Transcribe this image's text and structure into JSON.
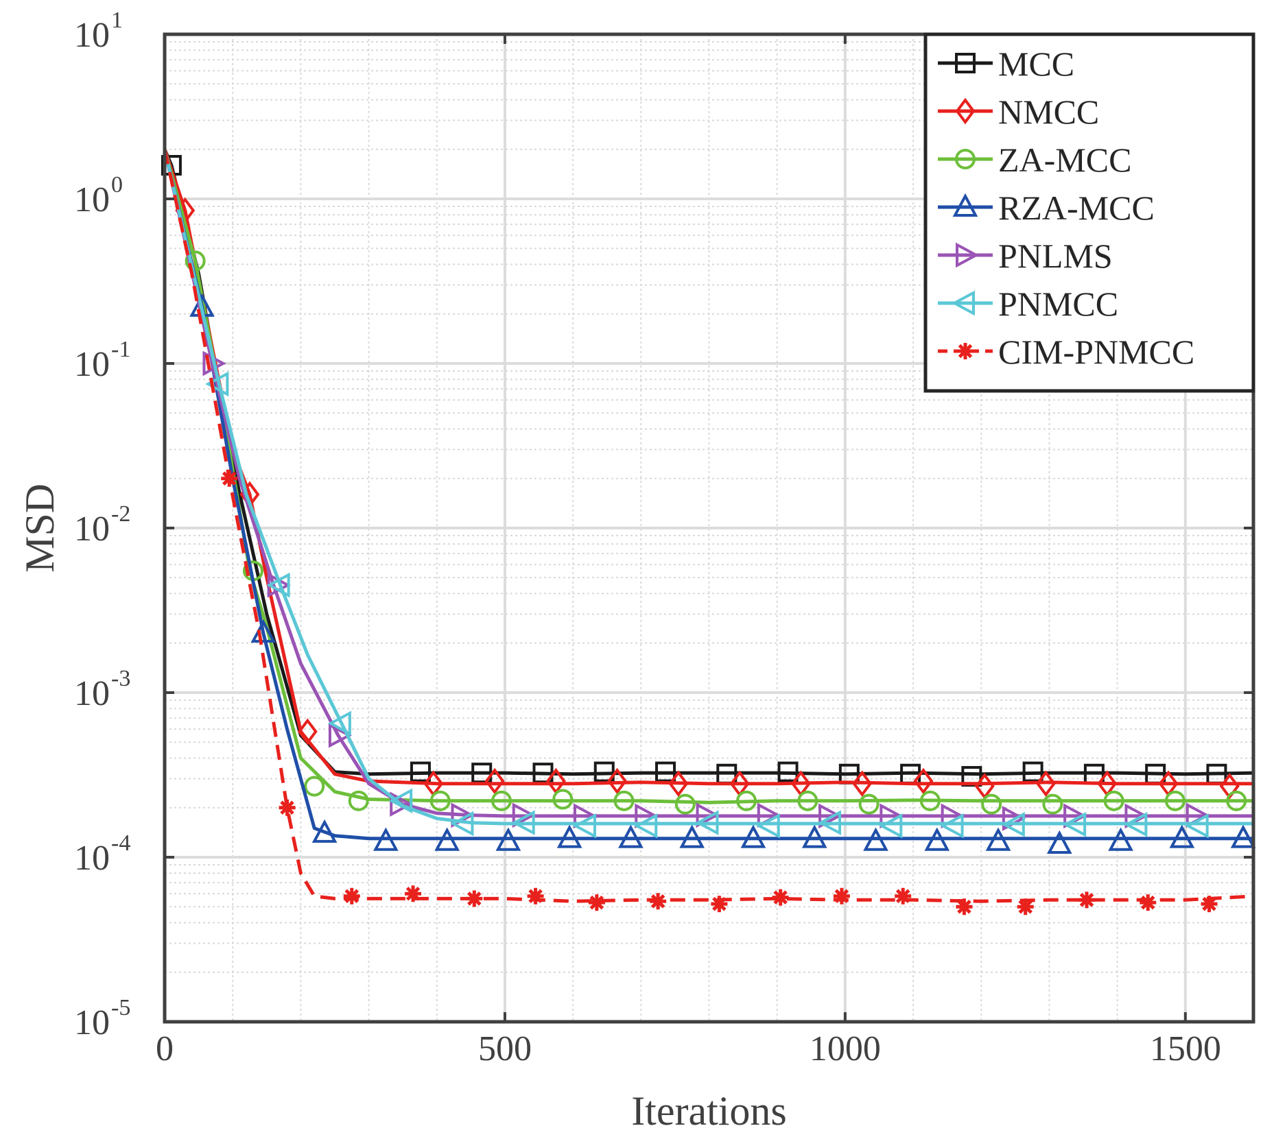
{
  "chart_data": {
    "type": "line",
    "title": "",
    "xlabel": "Iterations",
    "ylabel": "MSD",
    "xlim": [
      0,
      1600
    ],
    "ylim": [
      1e-05,
      10
    ],
    "yscale": "log",
    "xticks": [
      "0",
      "500",
      "1000",
      "1500"
    ],
    "yticks": [
      {
        "base": "10",
        "exp": "-5"
      },
      {
        "base": "10",
        "exp": "-4"
      },
      {
        "base": "10",
        "exp": "-3"
      },
      {
        "base": "10",
        "exp": "-2"
      },
      {
        "base": "10",
        "exp": "-1"
      },
      {
        "base": "10",
        "exp": "0"
      },
      {
        "base": "10",
        "exp": "1"
      }
    ],
    "grid": true,
    "minor_grid": true,
    "legend_position": "top-right",
    "series": [
      {
        "name": "MCC",
        "color": "#1a1a1a",
        "marker": "square",
        "dash": "solid",
        "x": [
          0,
          10,
          50,
          100,
          150,
          200,
          250,
          300,
          400,
          500,
          600,
          700,
          800,
          900,
          1000,
          1100,
          1200,
          1300,
          1400,
          1500,
          1600
        ],
        "y": [
          2.0,
          1.6,
          0.35,
          0.025,
          0.003,
          0.00055,
          0.00033,
          0.00032,
          0.000325,
          0.000325,
          0.00032,
          0.000325,
          0.000325,
          0.000325,
          0.00032,
          0.000325,
          0.00032,
          0.000325,
          0.000325,
          0.00032,
          0.000325
        ],
        "markers_x": [
          10,
          376,
          466,
          556,
          646,
          736,
          826,
          916,
          1006,
          1096,
          1186,
          1276,
          1366,
          1456,
          1546
        ],
        "markers_y": [
          1.6,
          0.00033,
          0.000325,
          0.000325,
          0.00033,
          0.00033,
          0.00032,
          0.00033,
          0.00032,
          0.00032,
          0.00031,
          0.00033,
          0.00032,
          0.00032,
          0.00032
        ]
      },
      {
        "name": "NMCC",
        "color": "#e8211d",
        "marker": "diamond",
        "dash": "solid",
        "x": [
          0,
          30,
          60,
          100,
          125,
          150,
          200,
          250,
          300,
          400,
          500,
          600,
          700,
          800,
          900,
          1000,
          1100,
          1200,
          1300,
          1400,
          1500,
          1600
        ],
        "y": [
          2.0,
          0.85,
          0.2,
          0.03,
          0.016,
          0.005,
          0.00058,
          0.00032,
          0.00029,
          0.00028,
          0.00028,
          0.00028,
          0.000285,
          0.00028,
          0.00028,
          0.000285,
          0.00028,
          0.00028,
          0.000285,
          0.00028,
          0.00028,
          0.00028
        ],
        "markers_x": [
          30,
          125,
          210,
          395,
          485,
          575,
          665,
          755,
          845,
          935,
          1025,
          1115,
          1205,
          1295,
          1385,
          1475,
          1565
        ],
        "markers_y": [
          0.85,
          0.016,
          0.00058,
          0.00028,
          0.00029,
          0.00029,
          0.00029,
          0.00028,
          0.00028,
          0.00028,
          0.00028,
          0.00029,
          0.00027,
          0.00028,
          0.00028,
          0.00028,
          0.00027
        ]
      },
      {
        "name": "ZA-MCC",
        "color": "#6cbf3a",
        "marker": "circle",
        "dash": "solid",
        "x": [
          0,
          45,
          80,
          125,
          150,
          200,
          250,
          300,
          400,
          500,
          600,
          700,
          800,
          900,
          1000,
          1100,
          1200,
          1300,
          1400,
          1500,
          1600
        ],
        "y": [
          2.0,
          0.42,
          0.07,
          0.0055,
          0.0025,
          0.0004,
          0.00025,
          0.000225,
          0.00022,
          0.00022,
          0.00022,
          0.00022,
          0.000215,
          0.00022,
          0.00022,
          0.000222,
          0.00022,
          0.00022,
          0.00022,
          0.00022,
          0.00022
        ],
        "markers_x": [
          45,
          130,
          220,
          285,
          405,
          495,
          585,
          675,
          765,
          855,
          945,
          1035,
          1125,
          1215,
          1305,
          1395,
          1485,
          1575
        ],
        "markers_y": [
          0.42,
          0.0055,
          0.00027,
          0.00022,
          0.00022,
          0.00022,
          0.000225,
          0.00022,
          0.00021,
          0.00022,
          0.00022,
          0.00021,
          0.00022,
          0.00021,
          0.00021,
          0.00022,
          0.00022,
          0.00022
        ]
      },
      {
        "name": "RZA-MCC",
        "color": "#1f4fa8",
        "marker": "triangle-up",
        "dash": "solid",
        "x": [
          0,
          55,
          100,
          145,
          180,
          220,
          250,
          300,
          400,
          500,
          600,
          700,
          800,
          900,
          1000,
          1100,
          1200,
          1300,
          1400,
          1500,
          1600
        ],
        "y": [
          2.0,
          0.22,
          0.02,
          0.0023,
          0.0006,
          0.00015,
          0.000135,
          0.00013,
          0.00013,
          0.00013,
          0.00013,
          0.00013,
          0.00013,
          0.00013,
          0.00013,
          0.00013,
          0.00013,
          0.00013,
          0.00013,
          0.00013,
          0.00013
        ],
        "markers_x": [
          55,
          145,
          235,
          325,
          415,
          505,
          595,
          685,
          775,
          865,
          955,
          1045,
          1135,
          1225,
          1315,
          1405,
          1495,
          1585
        ],
        "markers_y": [
          0.22,
          0.0023,
          0.00014,
          0.000125,
          0.000125,
          0.000125,
          0.00013,
          0.00013,
          0.00013,
          0.00013,
          0.00013,
          0.000125,
          0.000125,
          0.000125,
          0.00012,
          0.000125,
          0.00013,
          0.00013
        ]
      },
      {
        "name": "PNLMS",
        "color": "#9a54b5",
        "marker": "triangle-right",
        "dash": "solid",
        "x": [
          0,
          70,
          110,
          160,
          200,
          255,
          300,
          350,
          400,
          450,
          500,
          600,
          700,
          800,
          900,
          1000,
          1100,
          1200,
          1300,
          1400,
          1500,
          1600
        ],
        "y": [
          2.0,
          0.1,
          0.02,
          0.0045,
          0.0015,
          0.00055,
          0.00028,
          0.00021,
          0.000185,
          0.00018,
          0.000178,
          0.000178,
          0.000178,
          0.000178,
          0.000178,
          0.000178,
          0.000178,
          0.000178,
          0.000178,
          0.000178,
          0.000178,
          0.000178
        ],
        "markers_x": [
          70,
          165,
          255,
          345,
          435,
          525,
          615,
          705,
          795,
          885,
          975,
          1065,
          1155,
          1245,
          1335,
          1425,
          1515
        ],
        "markers_y": [
          0.1,
          0.0045,
          0.00055,
          0.00021,
          0.00018,
          0.00018,
          0.000178,
          0.000178,
          0.00018,
          0.00018,
          0.000178,
          0.000178,
          0.000178,
          0.000172,
          0.000178,
          0.000178,
          0.00018
        ]
      },
      {
        "name": "PNMCC",
        "color": "#5bc7d6",
        "marker": "triangle-left",
        "dash": "solid",
        "x": [
          0,
          80,
          120,
          170,
          210,
          260,
          300,
          350,
          400,
          450,
          500,
          600,
          700,
          800,
          900,
          1000,
          1100,
          1200,
          1300,
          1400,
          1500,
          1600
        ],
        "y": [
          2.0,
          0.075,
          0.016,
          0.0045,
          0.0017,
          0.00065,
          0.0003,
          0.000205,
          0.000172,
          0.000162,
          0.00016,
          0.00016,
          0.00016,
          0.00016,
          0.00016,
          0.00016,
          0.00016,
          0.00016,
          0.00016,
          0.00016,
          0.00016,
          0.00016
        ],
        "markers_x": [
          80,
          170,
          260,
          350,
          440,
          530,
          620,
          710,
          800,
          890,
          980,
          1070,
          1160,
          1250,
          1340,
          1430,
          1520
        ],
        "markers_y": [
          0.075,
          0.0045,
          0.00065,
          0.00022,
          0.00016,
          0.000162,
          0.000155,
          0.000155,
          0.000162,
          0.000155,
          0.000162,
          0.000155,
          0.000155,
          0.000158,
          0.000158,
          0.000158,
          0.000155
        ]
      },
      {
        "name": "CIM-PNMCC",
        "color": "#e8211d",
        "marker": "asterisk",
        "dash": "dashed",
        "x": [
          0,
          40,
          95,
          140,
          180,
          200,
          220,
          250,
          300,
          400,
          500,
          600,
          700,
          800,
          900,
          1000,
          1100,
          1200,
          1300,
          1400,
          1500,
          1600
        ],
        "y": [
          2.0,
          0.35,
          0.02,
          0.0022,
          0.0002,
          8e-05,
          5.8e-05,
          5.6e-05,
          5.6e-05,
          5.6e-05,
          5.6e-05,
          5.4e-05,
          5.5e-05,
          5.5e-05,
          5.6e-05,
          5.5e-05,
          5.5e-05,
          5.4e-05,
          5.5e-05,
          5.5e-05,
          5.5e-05,
          5.8e-05
        ],
        "markers_x": [
          95,
          180,
          275,
          365,
          455,
          545,
          635,
          725,
          815,
          905,
          995,
          1085,
          1175,
          1265,
          1355,
          1445,
          1535
        ],
        "markers_y": [
          0.02,
          0.0002,
          5.8e-05,
          6e-05,
          5.6e-05,
          5.8e-05,
          5.3e-05,
          5.4e-05,
          5.2e-05,
          5.7e-05,
          5.8e-05,
          5.8e-05,
          5e-05,
          5e-05,
          5.5e-05,
          5.3e-05,
          5.2e-05
        ]
      }
    ]
  }
}
